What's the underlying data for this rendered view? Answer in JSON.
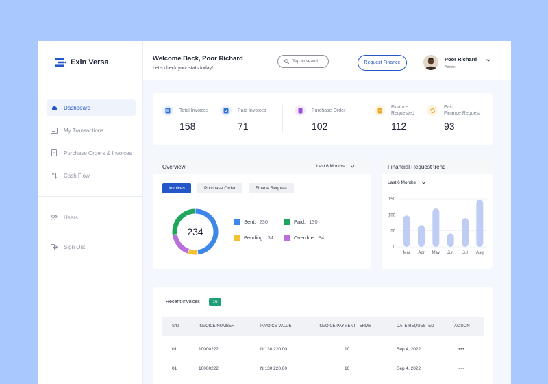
{
  "brand": {
    "name": "Exin Versa",
    "accent": "#2456c9"
  },
  "sidebar": {
    "items": [
      {
        "label": "Dashboard",
        "icon": "home-icon",
        "active": true
      },
      {
        "label": "My Transactions",
        "icon": "receipt-icon"
      },
      {
        "label": "Purchase Orders & Invoices",
        "icon": "document-icon"
      },
      {
        "label": "Cash Flow",
        "icon": "swap-arrows-icon"
      }
    ],
    "bottom_items": [
      {
        "label": "Users",
        "icon": "users-icon"
      },
      {
        "label": "Sign Out",
        "icon": "sign-out-icon"
      }
    ]
  },
  "header": {
    "welcome": "Welcome Back, Poor Richard",
    "subtitle": "Let's check your stats today!",
    "search_placeholder": "Tap to search",
    "request_button": "Request Finance",
    "user_name": "Poor Richard",
    "user_role": "Admin"
  },
  "stats": [
    {
      "label": "Total Invoices",
      "value": "158",
      "icon": "invoice-icon",
      "color": "#2f6fd8"
    },
    {
      "label": "Paid Invoices",
      "value": "71",
      "icon": "clipboard-check-icon",
      "color": "#2f6fd8"
    },
    {
      "label": "Purchase Order",
      "value": "102",
      "icon": "purchase-doc-icon",
      "color": "#9b4fd6"
    },
    {
      "label": "Finance Requested",
      "label_lines": [
        "Finance",
        "Requested"
      ],
      "value": "112",
      "icon": "finance-doc-icon",
      "color": "#e9a928"
    },
    {
      "label": "Paid Finance Request",
      "label_lines": [
        "Paid",
        "Finance Request"
      ],
      "value": "93",
      "icon": "refresh-coin-icon",
      "color": "#e9a928"
    }
  ],
  "overview": {
    "title": "Overview",
    "range": "Last 6 Months",
    "tabs": [
      "Invoices",
      "Purchase Order",
      "Finane Request"
    ],
    "total": "234",
    "legend": [
      {
        "label": "Sent:",
        "value": "230",
        "color": "#3d86ea"
      },
      {
        "label": "Paid:",
        "value": "130",
        "color": "#1fa65a"
      },
      {
        "label": "Pending:",
        "value": "34",
        "color": "#f2c230"
      },
      {
        "label": "Overdue:",
        "value": "84",
        "color": "#b96fdc"
      }
    ]
  },
  "trend": {
    "title": "Financial Request trend",
    "range": "Last 6 Months"
  },
  "chart_data": {
    "type": "bar",
    "title": "Financial Request trend",
    "categories": [
      "Mar",
      "Apr",
      "May",
      "Jun",
      "Jul",
      "Aug"
    ],
    "values": [
      98,
      68,
      120,
      42,
      90,
      148
    ],
    "ylim": [
      0,
      150
    ],
    "yticks": [
      0,
      50,
      100,
      150
    ],
    "grid": true,
    "bar_color": "#bfcdf5"
  },
  "recent": {
    "title": "Recent Invoices",
    "count": "16",
    "columns": [
      "S/N",
      "INVOICE NUMBER",
      "INVOICE VALUE",
      "INVOICE PAYMENT TERMS",
      "DATE REQUESTED",
      "ACTION"
    ],
    "rows": [
      {
        "sn": "01",
        "number": "10000222",
        "value": "N 130,220.00",
        "terms": "10",
        "date": "Sep 4, 2022",
        "action": "···"
      },
      {
        "sn": "01",
        "number": "10000222",
        "value": "N 130,220.00",
        "terms": "10",
        "date": "Sep 4, 2022",
        "action": "···"
      }
    ]
  }
}
